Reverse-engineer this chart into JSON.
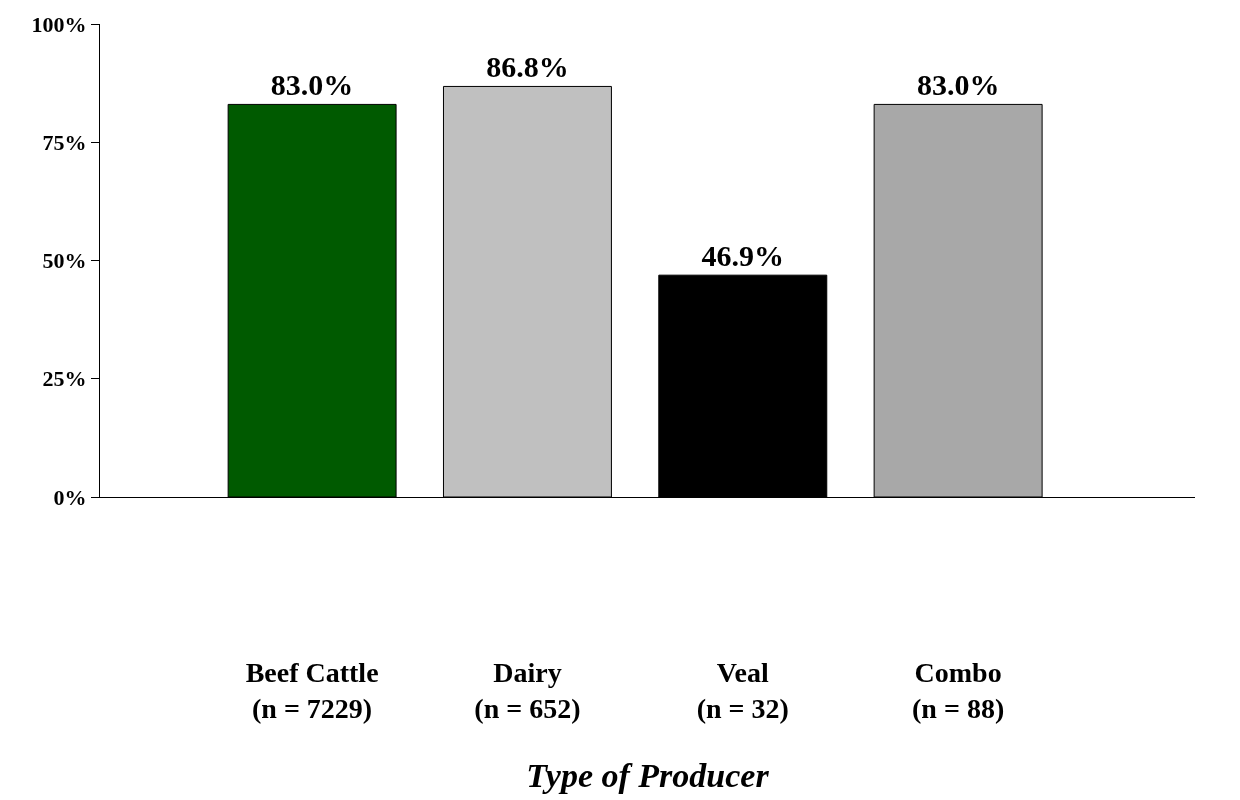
{
  "chart_data": {
    "type": "bar",
    "xlabel": "Type of Producer",
    "categories": [
      "Beef Cattle\n(n = 7229)",
      "Dairy\n(n = 652)",
      "Veal\n(n = 32)",
      "Combo\n(n = 88)"
    ],
    "values": [
      83.0,
      86.8,
      46.9,
      83.0
    ],
    "colors": [
      "#005a00",
      "#c0c0c0",
      "#000000",
      "#a8a8a8"
    ],
    "value_labels": [
      "83.0%",
      "86.8%",
      "46.9%",
      "83.0%"
    ],
    "ylim": [
      0,
      100
    ],
    "yticks": [
      {
        "value": 0,
        "label": "0%"
      },
      {
        "value": 25,
        "label": "25%"
      },
      {
        "value": 50,
        "label": "50%"
      },
      {
        "value": 75,
        "label": "75%"
      },
      {
        "value": 100,
        "label": "100%"
      }
    ],
    "tick_labels": true
  }
}
